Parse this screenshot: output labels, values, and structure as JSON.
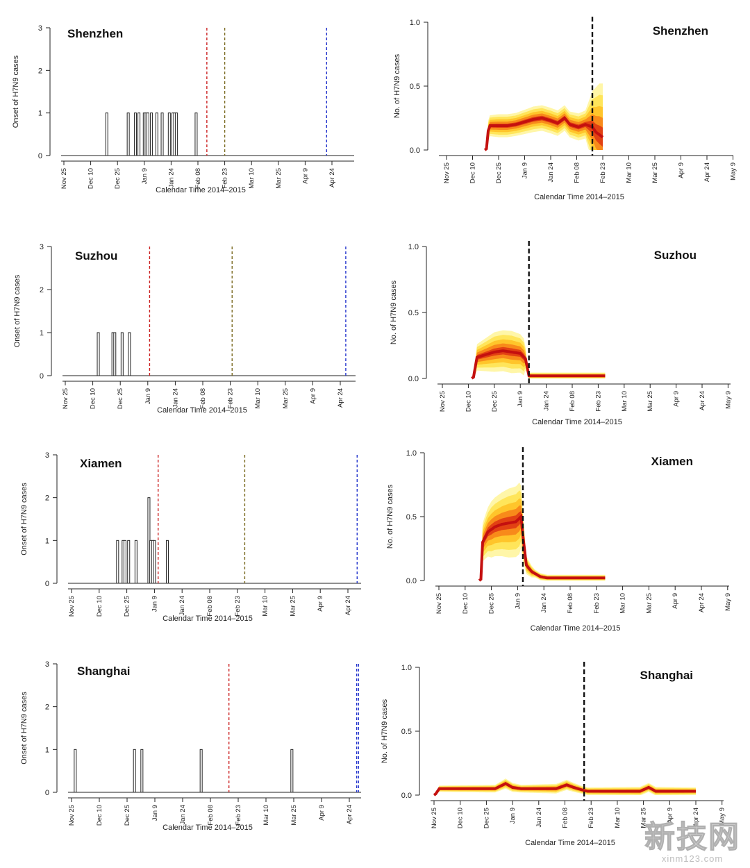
{
  "figure": {
    "tick_labels": [
      "Nov 25",
      "Dec 10",
      "Dec 25",
      "Jan 9",
      "Jan 24",
      "Feb 08",
      "Feb 23",
      "Mar 10",
      "Mar 25",
      "Apr 9",
      "Apr 24",
      "May 9"
    ],
    "watermark": {
      "logo": "新技网",
      "url": "xinm123.com"
    }
  },
  "chart_data": [
    {
      "type": "bar",
      "panel": "left",
      "title": "Shenzhen",
      "xlabel": "Calendar Time 2014–2015",
      "ylabel": "Onset of H7N9 cases",
      "x_unit": "days since Nov 25, 2014",
      "xlim": [
        0,
        153
      ],
      "ylim": [
        0,
        3
      ],
      "yticks": [
        0,
        1,
        2,
        3
      ],
      "bars": [
        [
          24,
          1
        ],
        [
          36,
          1
        ],
        [
          40,
          1
        ],
        [
          42,
          1
        ],
        [
          45,
          1
        ],
        [
          46,
          1
        ],
        [
          47,
          1
        ],
        [
          49,
          1
        ],
        [
          52,
          1
        ],
        [
          55,
          1
        ],
        [
          59,
          1
        ],
        [
          61,
          1
        ],
        [
          62,
          1
        ],
        [
          63,
          1
        ],
        [
          74,
          1
        ]
      ],
      "vlines": [
        {
          "x": 80,
          "color": "#cc2222"
        },
        {
          "x": 90,
          "color": "#7a6a20"
        },
        {
          "x": 147,
          "color": "#2233cc"
        }
      ]
    },
    {
      "type": "area",
      "panel": "right",
      "title": "Shenzhen",
      "xlabel": "Calendar Time 2014–2015",
      "ylabel": "No. of H7N9 cases",
      "xlim": [
        0,
        165
      ],
      "ylim": [
        0,
        1
      ],
      "yticks": [
        0.0,
        0.5,
        1.0
      ],
      "median": [
        [
          22,
          0.0
        ],
        [
          23,
          0.01
        ],
        [
          24,
          0.15
        ],
        [
          25,
          0.19
        ],
        [
          30,
          0.19
        ],
        [
          35,
          0.19
        ],
        [
          40,
          0.2
        ],
        [
          45,
          0.22
        ],
        [
          50,
          0.24
        ],
        [
          55,
          0.25
        ],
        [
          60,
          0.23
        ],
        [
          64,
          0.21
        ],
        [
          68,
          0.25
        ],
        [
          71,
          0.2
        ],
        [
          76,
          0.18
        ],
        [
          80,
          0.2
        ],
        [
          84,
          0.18
        ],
        [
          86,
          0.14
        ],
        [
          88,
          0.12
        ],
        [
          90,
          0.1
        ]
      ],
      "outer_half_width": [
        [
          22,
          0.0
        ],
        [
          23,
          0.005
        ],
        [
          24,
          0.08
        ],
        [
          30,
          0.09
        ],
        [
          40,
          0.09
        ],
        [
          50,
          0.1
        ],
        [
          60,
          0.1
        ],
        [
          70,
          0.1
        ],
        [
          80,
          0.11
        ],
        [
          84,
          0.28
        ],
        [
          86,
          0.35
        ],
        [
          88,
          0.4
        ],
        [
          90,
          0.42
        ]
      ],
      "vline": 84
    },
    {
      "type": "bar",
      "panel": "left",
      "title": "Suzhou",
      "xlabel": "Calendar Time 2014–2015",
      "ylabel": "Onset of H7N9 cases",
      "xlim": [
        0,
        153
      ],
      "ylim": [
        0,
        3
      ],
      "yticks": [
        0,
        1,
        2,
        3
      ],
      "bars": [
        [
          18,
          1
        ],
        [
          26,
          1
        ],
        [
          27,
          1
        ],
        [
          31,
          1
        ],
        [
          35,
          1
        ]
      ],
      "vlines": [
        {
          "x": 46,
          "color": "#cc2222"
        },
        {
          "x": 91,
          "color": "#7a6a20"
        },
        {
          "x": 153,
          "color": "#2233cc"
        }
      ]
    },
    {
      "type": "area",
      "panel": "right",
      "title": "Suzhou",
      "xlabel": "Calendar Time 2014–2015",
      "ylabel": "No. of H7N9 cases",
      "xlim": [
        0,
        165
      ],
      "ylim": [
        0,
        1
      ],
      "yticks": [
        0.0,
        0.5,
        1.0
      ],
      "median": [
        [
          17,
          0.0
        ],
        [
          18,
          0.01
        ],
        [
          20,
          0.16
        ],
        [
          25,
          0.18
        ],
        [
          30,
          0.2
        ],
        [
          35,
          0.21
        ],
        [
          40,
          0.2
        ],
        [
          45,
          0.19
        ],
        [
          48,
          0.15
        ],
        [
          50,
          0.02
        ],
        [
          55,
          0.02
        ],
        [
          70,
          0.02
        ],
        [
          94,
          0.02
        ]
      ],
      "outer_half_width": [
        [
          17,
          0.0
        ],
        [
          18,
          0.01
        ],
        [
          20,
          0.1
        ],
        [
          30,
          0.15
        ],
        [
          40,
          0.16
        ],
        [
          47,
          0.14
        ],
        [
          49,
          0.04
        ],
        [
          50,
          0.025
        ],
        [
          94,
          0.025
        ]
      ],
      "vline": 50
    },
    {
      "type": "bar",
      "panel": "left",
      "title": "Xiamen",
      "xlabel": "Calendar Time 2014–2015",
      "ylabel": "Onset of H7N9 cases",
      "xlim": [
        0,
        153
      ],
      "ylim": [
        0,
        3
      ],
      "yticks": [
        0,
        1,
        2,
        3
      ],
      "bars": [
        [
          25,
          1
        ],
        [
          28,
          1
        ],
        [
          29,
          1
        ],
        [
          31,
          1
        ],
        [
          35,
          1
        ],
        [
          42,
          2
        ],
        [
          43,
          1
        ],
        [
          44,
          1
        ],
        [
          45,
          1
        ],
        [
          52,
          1
        ]
      ],
      "vlines": [
        {
          "x": 47,
          "color": "#cc2222"
        },
        {
          "x": 94,
          "color": "#7a6a20"
        },
        {
          "x": 155,
          "color": "#2233cc"
        }
      ]
    },
    {
      "type": "area",
      "panel": "right",
      "title": "Xiamen",
      "xlabel": "Calendar Time 2014–2015",
      "ylabel": "No. of H7N9 cases",
      "xlim": [
        0,
        165
      ],
      "ylim": [
        0,
        1
      ],
      "yticks": [
        0.0,
        0.5,
        1.0
      ],
      "median": [
        [
          23,
          0.0
        ],
        [
          24,
          0.01
        ],
        [
          25,
          0.3
        ],
        [
          28,
          0.38
        ],
        [
          32,
          0.42
        ],
        [
          36,
          0.44
        ],
        [
          40,
          0.45
        ],
        [
          44,
          0.46
        ],
        [
          47,
          0.5
        ],
        [
          48,
          0.35
        ],
        [
          50,
          0.12
        ],
        [
          53,
          0.07
        ],
        [
          58,
          0.03
        ],
        [
          62,
          0.02
        ],
        [
          75,
          0.02
        ],
        [
          95,
          0.02
        ]
      ],
      "outer_half_width": [
        [
          23,
          0.0
        ],
        [
          24,
          0.01
        ],
        [
          25,
          0.15
        ],
        [
          30,
          0.22
        ],
        [
          40,
          0.27
        ],
        [
          46,
          0.28
        ],
        [
          48,
          0.2
        ],
        [
          50,
          0.07
        ],
        [
          55,
          0.03
        ],
        [
          62,
          0.025
        ],
        [
          95,
          0.025
        ]
      ],
      "vline": 48
    },
    {
      "type": "bar",
      "panel": "left",
      "title": "Shanghai",
      "xlabel": "Calendar Time 2014–2015",
      "ylabel": "Onset of H7N9 cases",
      "xlim": [
        0,
        153
      ],
      "ylim": [
        0,
        3
      ],
      "yticks": [
        0,
        1,
        2,
        3
      ],
      "bars": [
        [
          2,
          1
        ],
        [
          34,
          1
        ],
        [
          38,
          1
        ],
        [
          70,
          1
        ],
        [
          119,
          1
        ]
      ],
      "vlines": [
        {
          "x": 85,
          "color": "#cc2222"
        },
        {
          "x": 154,
          "color": "#2233cc"
        },
        {
          "x": 155,
          "color": "#2233cc"
        }
      ]
    },
    {
      "type": "area",
      "panel": "right",
      "title": "Shanghai",
      "xlabel": "Calendar Time 2014–2015",
      "ylabel": "No. of H7N9 cases",
      "xlim": [
        0,
        165
      ],
      "ylim": [
        0,
        1
      ],
      "yticks": [
        0.0,
        0.5,
        1.0
      ],
      "median": [
        [
          0,
          0.0
        ],
        [
          1,
          0.01
        ],
        [
          3,
          0.05
        ],
        [
          20,
          0.05
        ],
        [
          35,
          0.05
        ],
        [
          41,
          0.09
        ],
        [
          45,
          0.06
        ],
        [
          50,
          0.05
        ],
        [
          70,
          0.05
        ],
        [
          76,
          0.08
        ],
        [
          80,
          0.06
        ],
        [
          85,
          0.04
        ],
        [
          88,
          0.03
        ],
        [
          100,
          0.03
        ],
        [
          118,
          0.03
        ],
        [
          123,
          0.06
        ],
        [
          127,
          0.03
        ],
        [
          150,
          0.03
        ]
      ],
      "outer_half_width": [
        [
          0,
          0.0
        ],
        [
          1,
          0.005
        ],
        [
          3,
          0.025
        ],
        [
          35,
          0.03
        ],
        [
          41,
          0.04
        ],
        [
          50,
          0.03
        ],
        [
          76,
          0.04
        ],
        [
          85,
          0.03
        ],
        [
          123,
          0.035
        ],
        [
          150,
          0.03
        ]
      ],
      "vline": 86
    }
  ]
}
